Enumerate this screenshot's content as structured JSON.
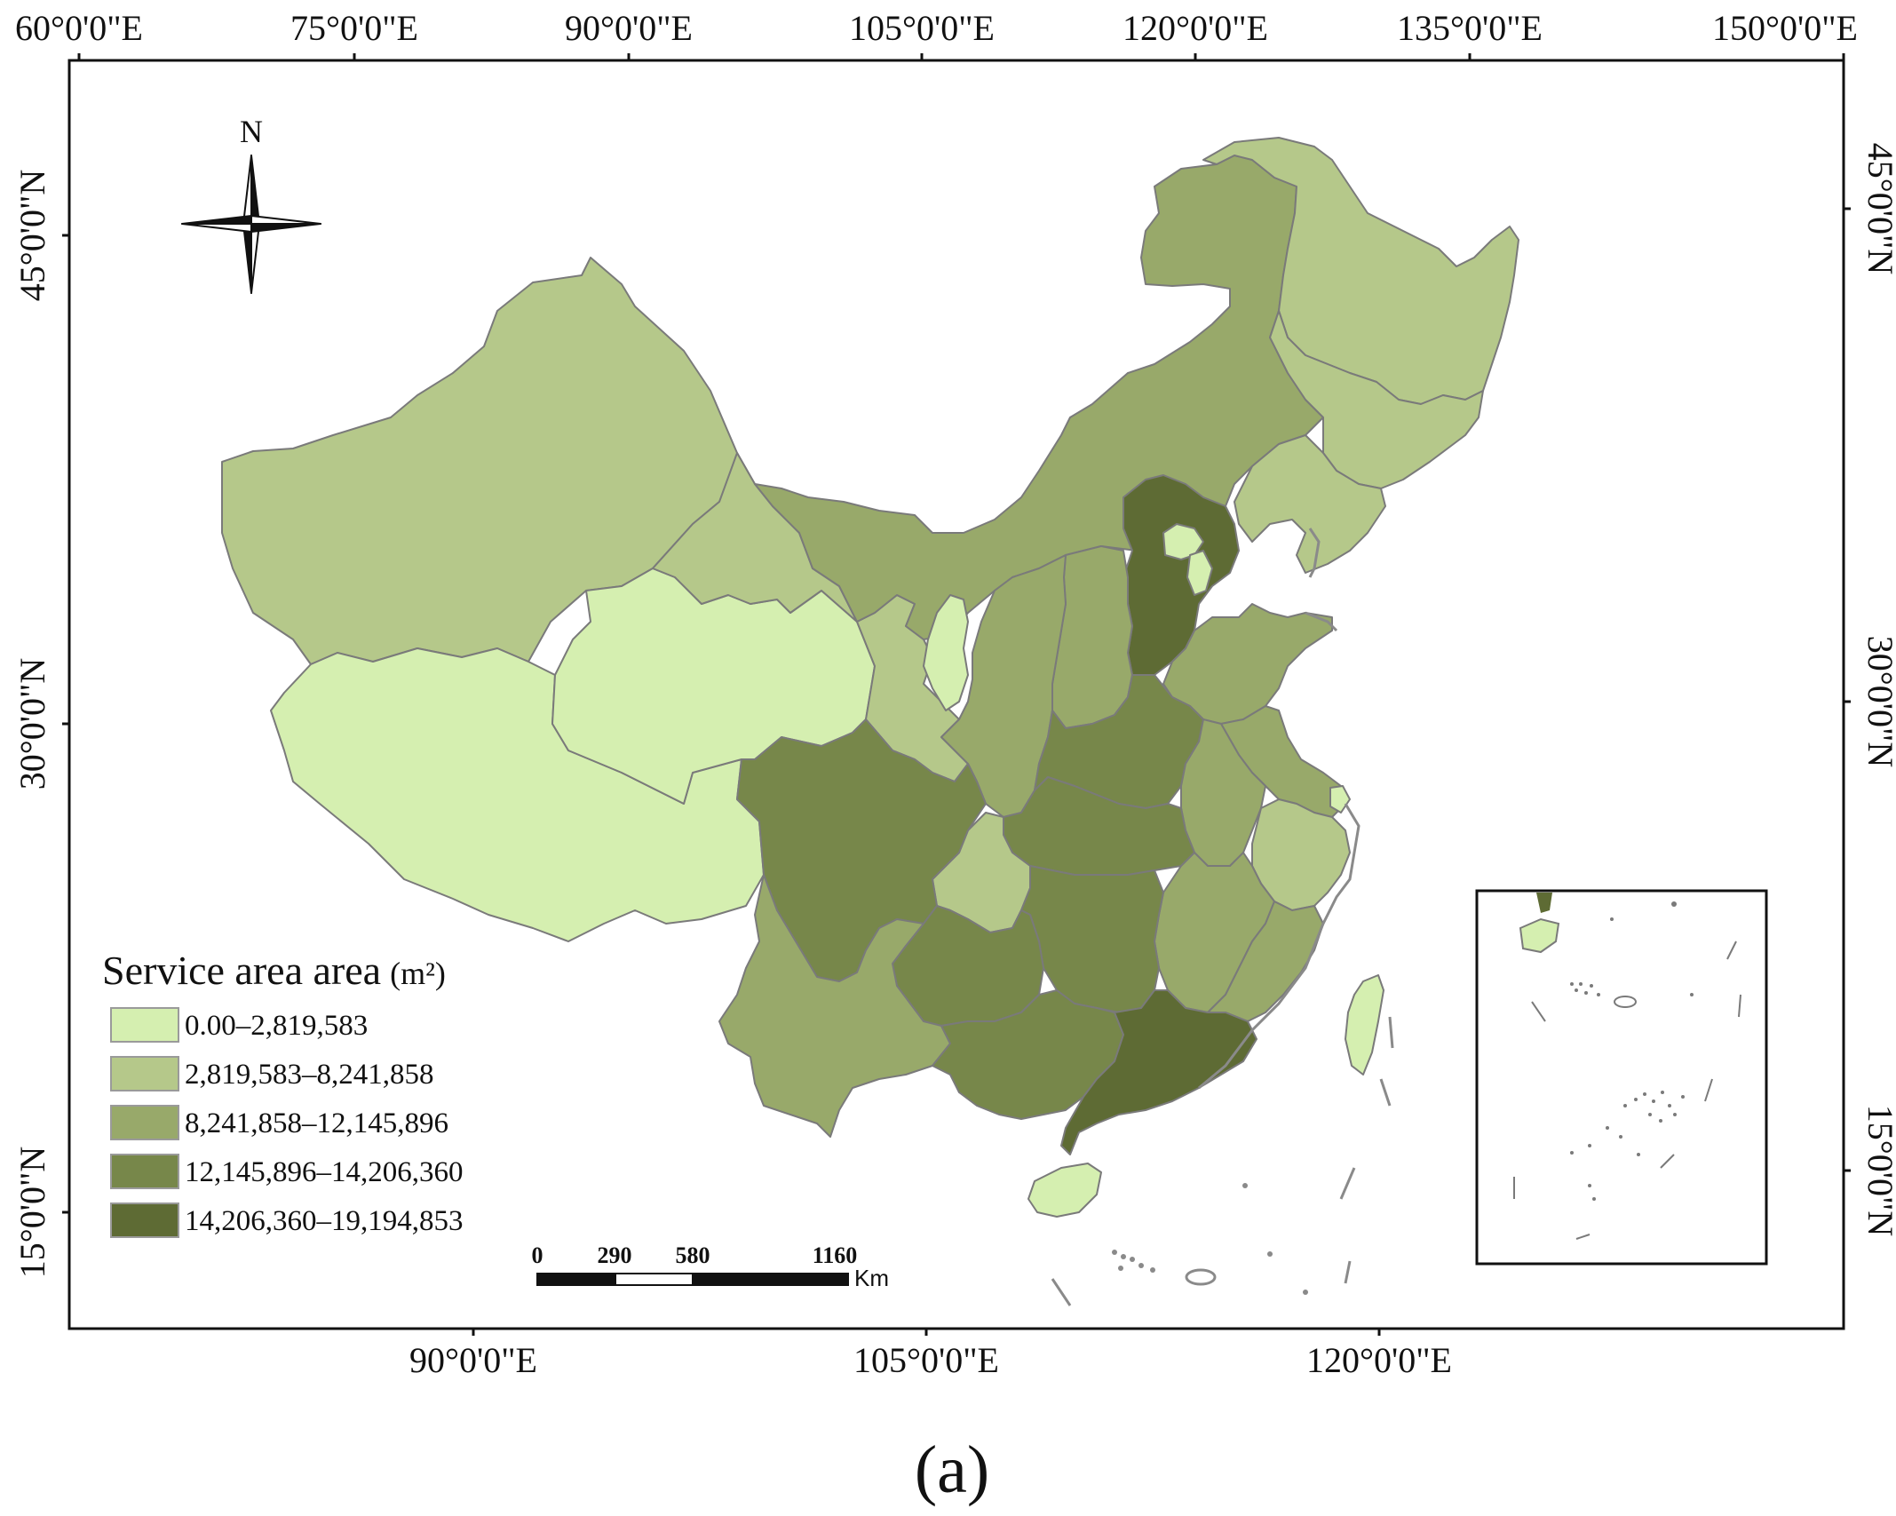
{
  "colors": {
    "class_1": "#d5efb0",
    "class_2": "#b5c88a",
    "class_3": "#98a96a",
    "class_4": "#77874a",
    "class_5": "#5e6b34",
    "border": "#7a7a7a",
    "frame": "#111111"
  },
  "top_axis": {
    "labels": [
      "60°0'0\"E",
      "75°0'0\"E",
      "90°0'0\"E",
      "105°0'0\"E",
      "120°0'0\"E",
      "135°0'0\"E",
      "150°0'0\"E"
    ]
  },
  "bottom_axis": {
    "labels": [
      "90°0'0\"E",
      "105°0'0\"E",
      "120°0'0\"E"
    ]
  },
  "left_axis": {
    "labels": [
      "45°0'0\"N",
      "30°0'0\"N",
      "15°0'0\"N"
    ]
  },
  "right_axis": {
    "labels": [
      "45°0'0\"N",
      "30°0'0\"N",
      "15°0'0\"N"
    ]
  },
  "north_arrow": {
    "label": "N",
    "icon": "compass-rose-icon"
  },
  "legend": {
    "title": "Service area area",
    "unit": "(m²)",
    "classes": [
      {
        "label": "0.00–2,819,583",
        "color": "#d5efb0"
      },
      {
        "label": "2,819,583–8,241,858",
        "color": "#b5c88a"
      },
      {
        "label": "8,241,858–12,145,896",
        "color": "#98a96a"
      },
      {
        "label": "12,145,896–14,206,360",
        "color": "#77874a"
      },
      {
        "label": "14,206,360–19,194,853",
        "color": "#5e6b34"
      }
    ]
  },
  "scale_bar": {
    "ticks": [
      "0",
      "290",
      "580",
      "1160"
    ],
    "unit": "Km"
  },
  "caption": "(a)"
}
